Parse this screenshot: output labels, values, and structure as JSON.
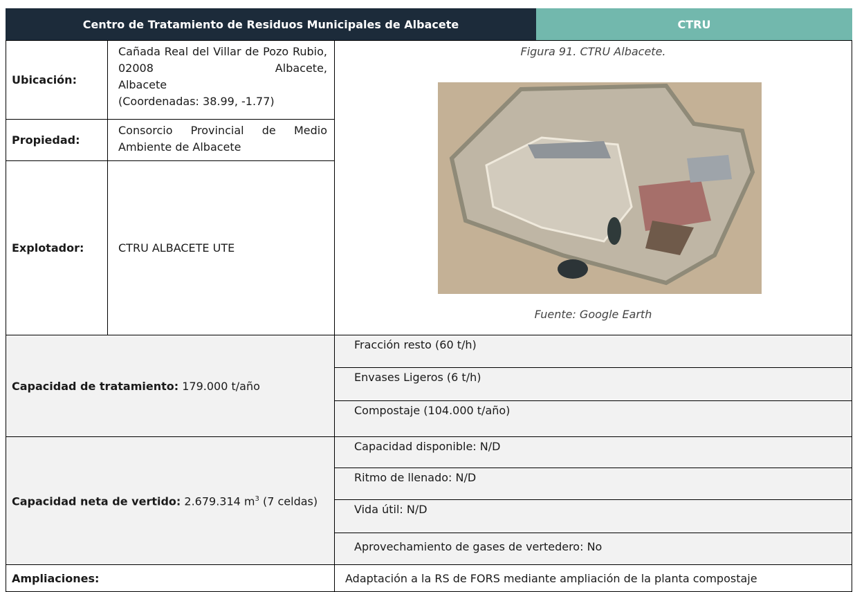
{
  "header": {
    "title": "Centro de Tratamiento de Residuos Municipales de Albacete",
    "code": "CTRU"
  },
  "location": {
    "label": "Ubicación:",
    "address": "Cañada Real del Villar de Pozo Rubio, 02008 Albacete,",
    "city": "Albacete",
    "coordinates": "(Coordenadas: 38.99, -1.77)"
  },
  "owner": {
    "label": "Propiedad:",
    "value": "Consorcio Provincial de Medio Ambiente de Albacete"
  },
  "operator": {
    "label": "Explotador:",
    "value": "CTRU ALBACETE UTE"
  },
  "figure": {
    "caption": "Figura 91. CTRU Albacete.",
    "source": "Fuente: Google Earth"
  },
  "treatment": {
    "label": "Capacidad de tratamiento:",
    "value": "179.000 t/año",
    "items": [
      "Fracción resto (60 t/h)",
      "Envases Ligeros (6 t/h)",
      "Compostaje (104.000 t/año)"
    ]
  },
  "landfill": {
    "label": "Capacidad neta de vertido:",
    "value": "2.679.314 m",
    "superscript": "3",
    "value_rest": " (7 celdas)",
    "items": [
      "Capacidad disponible: N/D",
      "Ritmo de llenado: N/D",
      "Vida útil: N/D",
      "Aprovechamiento de gases de vertedero: No"
    ]
  },
  "expansions": {
    "label": "Ampliaciones:",
    "value": "Adaptación a la RS de FORS mediante ampliación de la planta compostaje"
  }
}
